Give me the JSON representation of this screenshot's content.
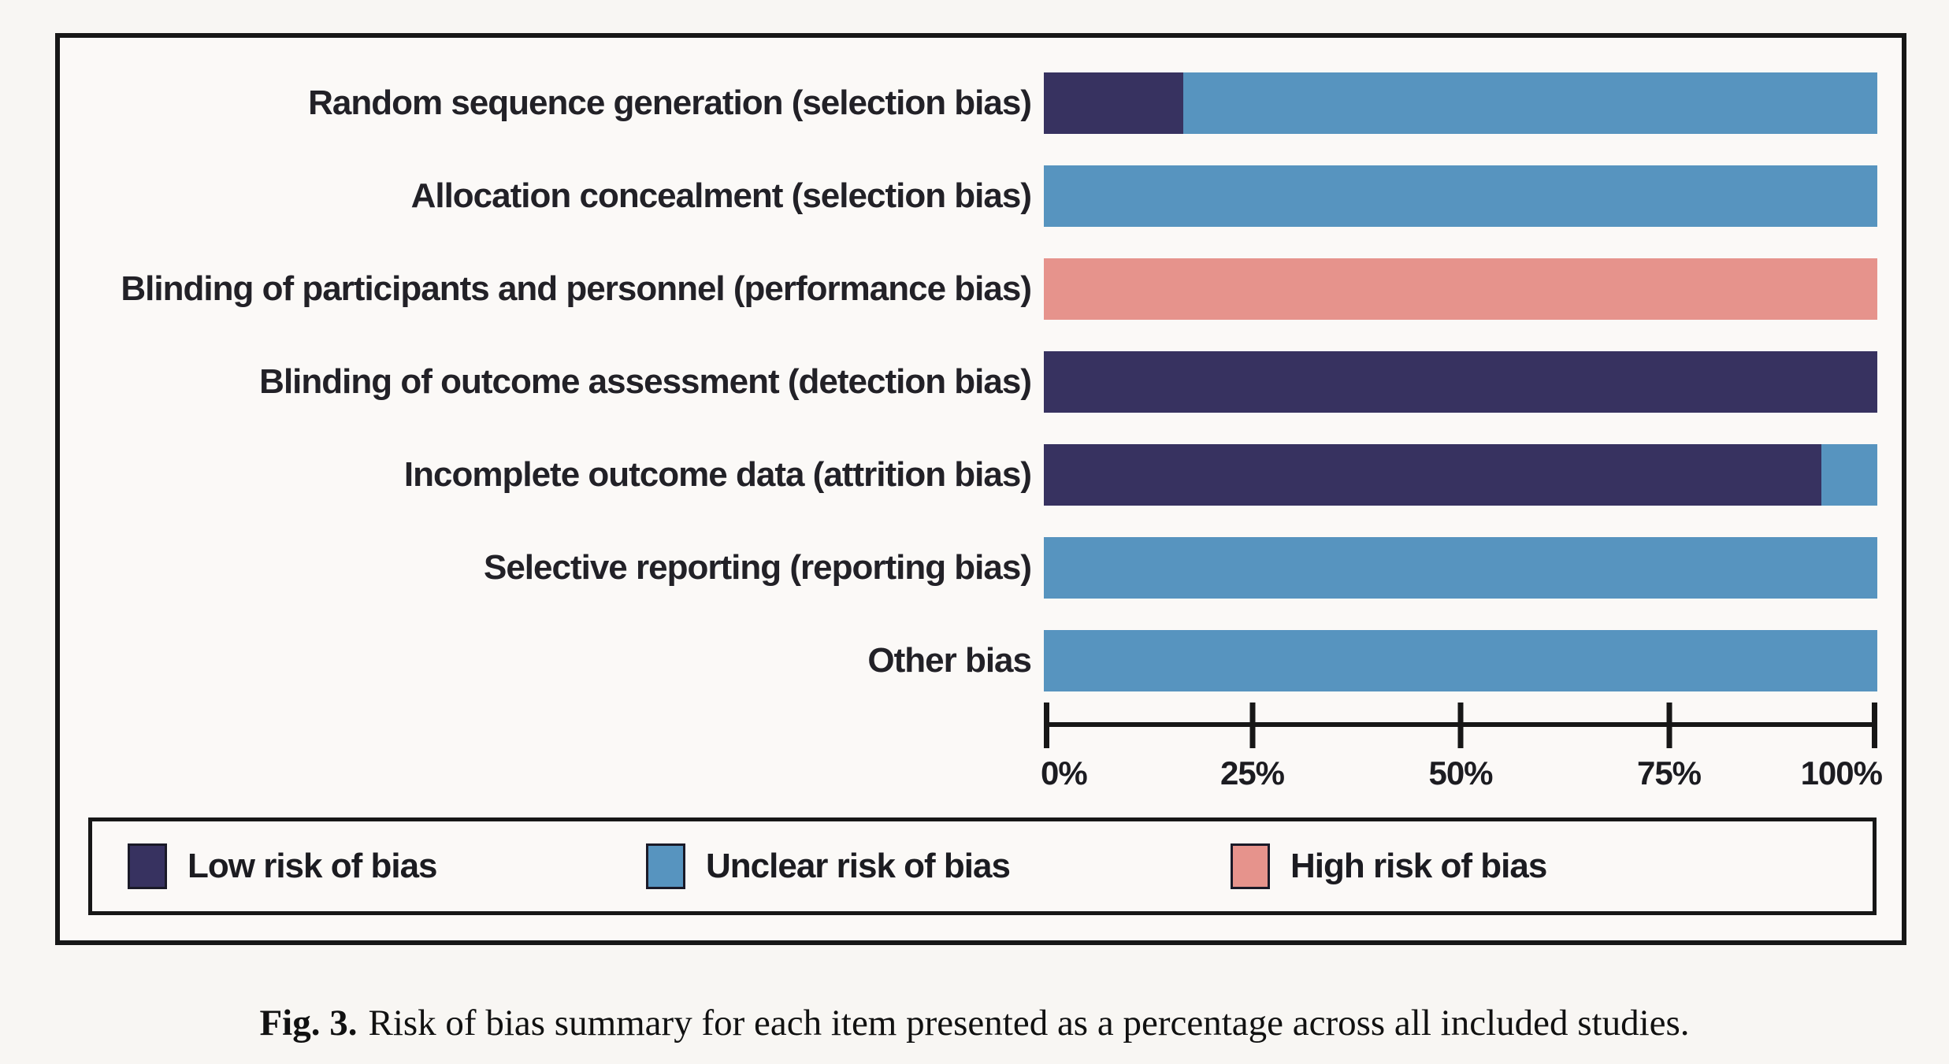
{
  "figure": {
    "caption_prefix": "Fig. 3.",
    "caption_text": "Risk of bias summary for each item presented as a percentage across all included studies."
  },
  "colors": {
    "low_risk": "#373260",
    "unclear_risk": "#5794bf",
    "high_risk": "#e6938c",
    "frame_border": "#171717",
    "panel_background": "#fbf9f7",
    "page_background": "#f8f6f3"
  },
  "chart_data": {
    "type": "bar",
    "orientation": "horizontal",
    "stacked_percent": true,
    "title": "",
    "xlabel": "",
    "ylabel": "",
    "xlim": [
      0,
      100
    ],
    "grid": false,
    "legend_position": "bottom",
    "categories": [
      "Random sequence generation (selection bias)",
      "Allocation concealment (selection bias)",
      "Blinding of participants and personnel (performance bias)",
      "Blinding of outcome assessment (detection bias)",
      "Incomplete outcome data (attrition bias)",
      "Selective reporting (reporting bias)",
      "Other bias"
    ],
    "series": [
      {
        "name": "Low risk of bias",
        "color": "#373260",
        "values": [
          16.7,
          0,
          0,
          100,
          93.3,
          0,
          0
        ]
      },
      {
        "name": "Unclear risk of bias",
        "color": "#5794bf",
        "values": [
          83.3,
          100,
          0,
          0,
          6.7,
          100,
          100
        ]
      },
      {
        "name": "High risk of bias",
        "color": "#e6938c",
        "values": [
          0,
          0,
          100,
          0,
          0,
          0,
          0
        ]
      }
    ],
    "x_ticks": [
      "0%",
      "25%",
      "50%",
      "75%",
      "100%"
    ]
  }
}
